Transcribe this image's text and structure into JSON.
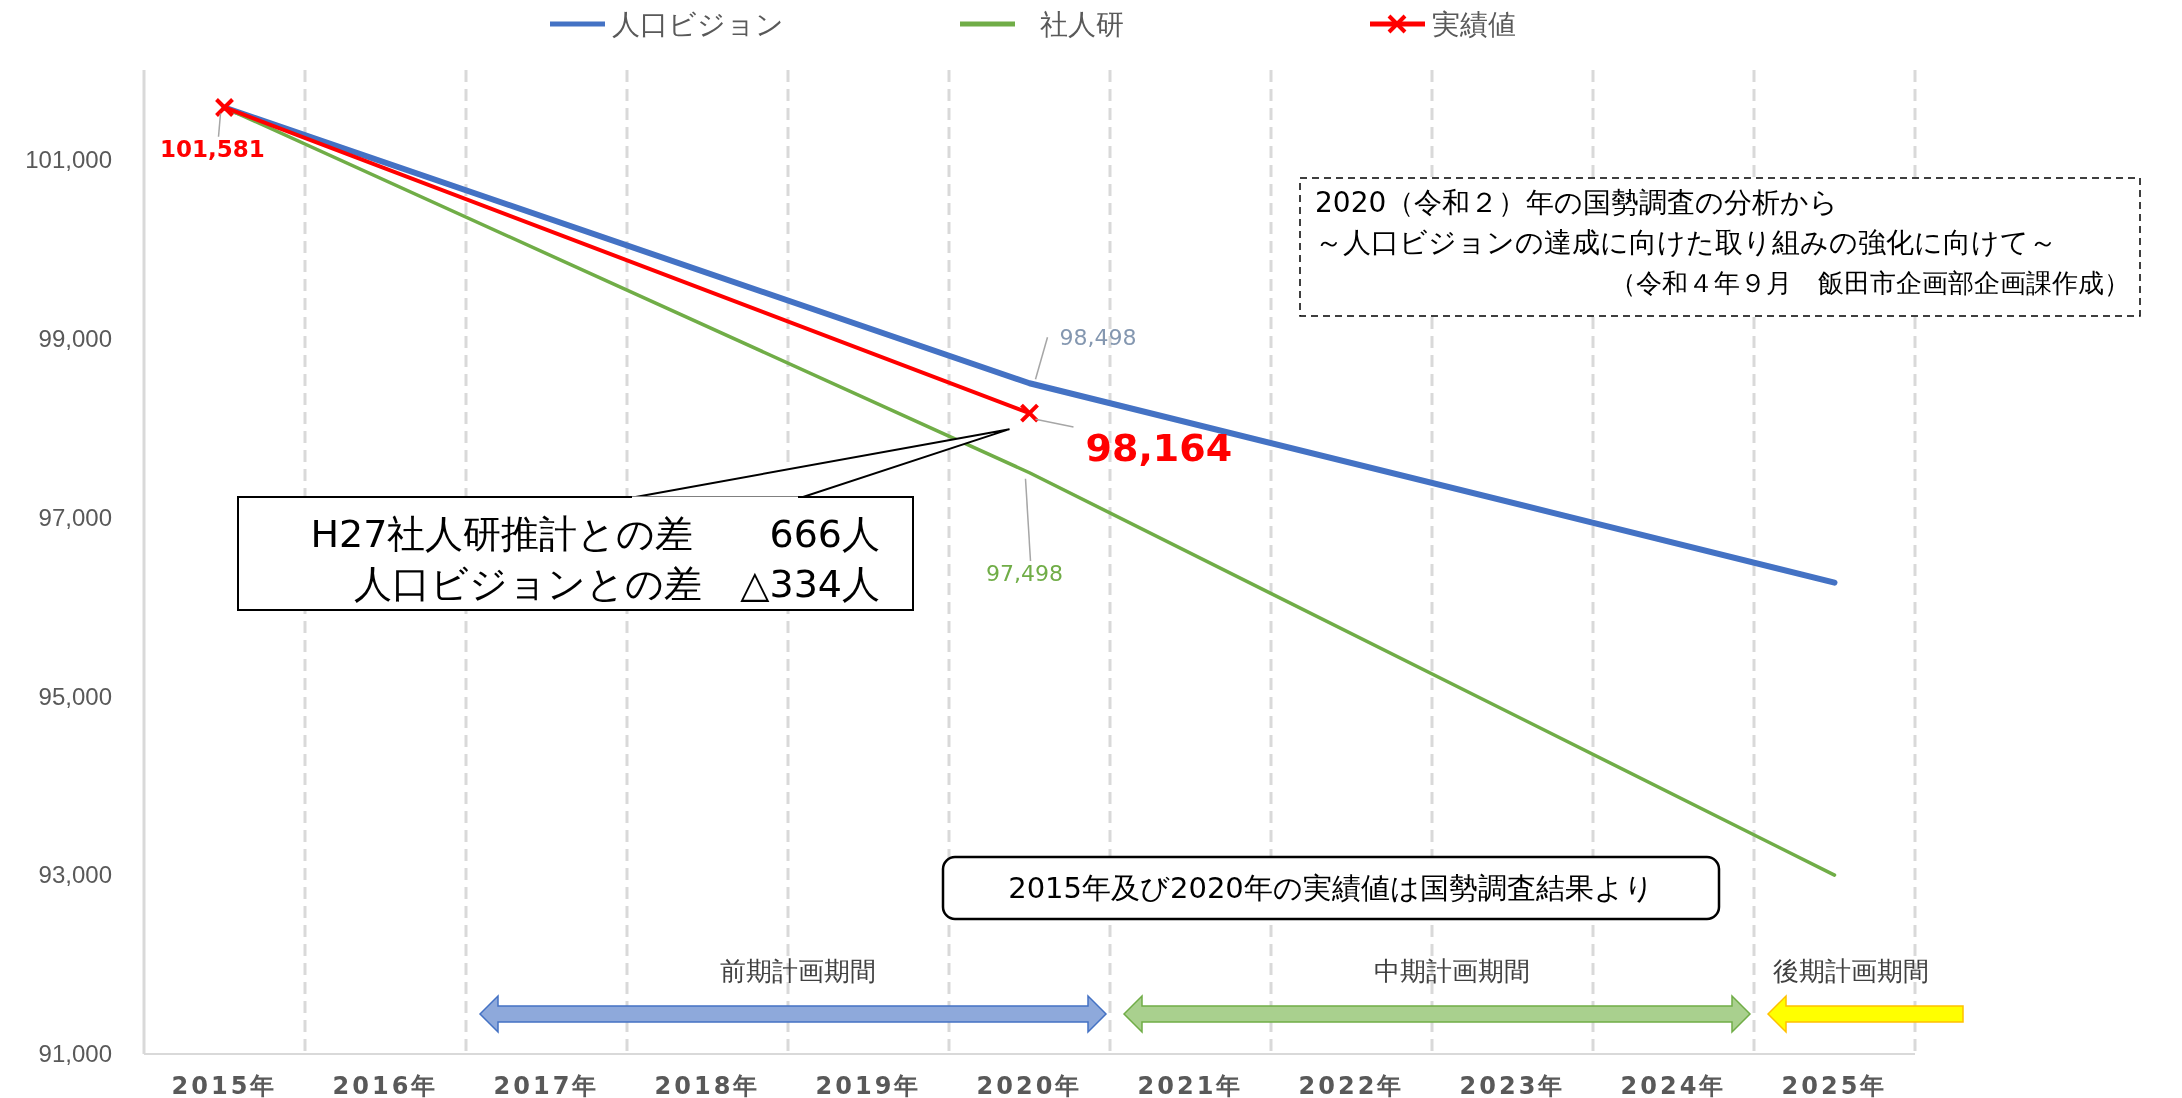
{
  "chart_data": {
    "type": "line",
    "categories": [
      "2015年",
      "2016年",
      "2017年",
      "2018年",
      "2019年",
      "2020年",
      "2021年",
      "2022年",
      "2023年",
      "2024年",
      "2025年"
    ],
    "series": [
      {
        "name": "人口ビジョン",
        "color": "#4472c4",
        "x": [
          "2015年",
          "2020年",
          "2025年"
        ],
        "values": [
          101580,
          98498,
          96270
        ],
        "value_labels": [
          null,
          "98,498",
          null
        ],
        "marker": "none"
      },
      {
        "name": "社人研",
        "color": "#70ad47",
        "x": [
          "2015年",
          "2020年",
          "2025年"
        ],
        "values": [
          101580,
          97498,
          93000
        ],
        "value_labels": [
          null,
          "97,498",
          null
        ],
        "marker": "none"
      },
      {
        "name": "実績値",
        "color": "#ff0000",
        "x": [
          "2015年",
          "2020年"
        ],
        "values": [
          101581,
          98164
        ],
        "value_labels": [
          "101,581",
          "98,164"
        ],
        "marker": "cross"
      }
    ],
    "ylim": [
      91000,
      102000
    ],
    "yticks": [
      {
        "value": 91000,
        "label": "91,000"
      },
      {
        "value": 93000,
        "label": "93,000"
      },
      {
        "value": 95000,
        "label": "95,000"
      },
      {
        "value": 97000,
        "label": "97,000"
      },
      {
        "value": 99000,
        "label": "99,000"
      },
      {
        "value": 101000,
        "label": "101,000"
      }
    ],
    "grid": "x",
    "legend": "top",
    "line_style": "solid",
    "annotations": [
      "2020（令和２）年の国勢調査の分析から",
      "～人口ビジョンの達成に向けた取り組みの強化に向けて～",
      "（令和４年９月　飯田市企画部企画課作成）",
      "H27社人研推計との差　　666人",
      "人口ビジョンとの差　△334人",
      "2015年及び2020年の実績値は国勢調査結果より",
      "前期計画期間",
      "中期計画期間",
      "後期計画期間"
    ]
  }
}
